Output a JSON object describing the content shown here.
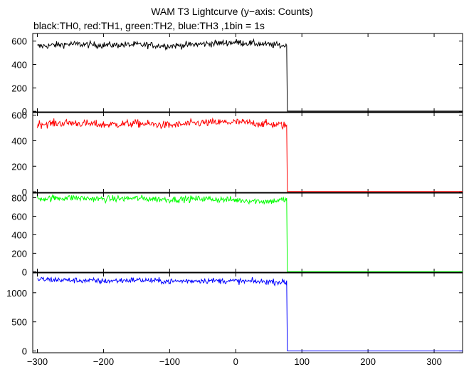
{
  "title": "WAM T3 Lightcurve (y−axis: Counts)",
  "subtitle": "black:TH0, red:TH1, green:TH2, blue:TH3 ,1bin = 1s",
  "chart_data": {
    "type": "line",
    "x_range": [
      -307,
      343
    ],
    "x_ticks": [
      -300,
      -200,
      -100,
      0,
      100,
      200,
      300
    ],
    "x_tick_labels": [
      "−300",
      "−200",
      "−100",
      "0",
      "100",
      "200",
      "300"
    ],
    "series": [
      {
        "name": "TH0",
        "color": "#000000",
        "ylim": [
          -5,
          665
        ],
        "y_ticks": [
          0,
          200,
          400,
          600
        ],
        "y_tick_labels": [
          "0",
          "200",
          "400",
          "600"
        ],
        "level": 570,
        "noise": 20,
        "drop_x": 77,
        "after_level": 2,
        "points": [
          [
            -300,
            555
          ],
          [
            -250,
            575
          ],
          [
            -200,
            565
          ],
          [
            -150,
            570
          ],
          [
            -100,
            558
          ],
          [
            -50,
            575
          ],
          [
            0,
            590
          ],
          [
            50,
            570
          ],
          [
            75,
            560
          ],
          [
            78,
            2
          ],
          [
            343,
            2
          ]
        ]
      },
      {
        "name": "TH1",
        "color": "#ff0000",
        "ylim": [
          -5,
          620
        ],
        "y_ticks": [
          0,
          200,
          400,
          600
        ],
        "y_tick_labels": [
          "0",
          "200",
          "400",
          "600"
        ],
        "level": 530,
        "noise": 22,
        "drop_x": 77,
        "after_level": 2,
        "points": [
          [
            -300,
            530
          ],
          [
            -250,
            540
          ],
          [
            -200,
            525
          ],
          [
            -150,
            535
          ],
          [
            -100,
            520
          ],
          [
            -50,
            540
          ],
          [
            0,
            545
          ],
          [
            50,
            530
          ],
          [
            75,
            520
          ],
          [
            78,
            2
          ],
          [
            343,
            2
          ]
        ]
      },
      {
        "name": "TH2",
        "color": "#00ff00",
        "ylim": [
          -5,
          850
        ],
        "y_ticks": [
          0,
          200,
          400,
          600,
          800
        ],
        "y_tick_labels": [
          "0",
          "200",
          "400",
          "600",
          "800"
        ],
        "level": 790,
        "noise": 25,
        "drop_x": 77,
        "after_level": 2,
        "points": [
          [
            -300,
            790
          ],
          [
            -250,
            800
          ],
          [
            -200,
            785
          ],
          [
            -150,
            795
          ],
          [
            -100,
            780
          ],
          [
            -50,
            790
          ],
          [
            0,
            775
          ],
          [
            50,
            760
          ],
          [
            75,
            780
          ],
          [
            78,
            2
          ],
          [
            343,
            2
          ]
        ]
      },
      {
        "name": "TH3",
        "color": "#0000ff",
        "ylim": [
          -30,
          1340
        ],
        "y_ticks": [
          0,
          500,
          1000
        ],
        "y_tick_labels": [
          "0",
          "500",
          "1000"
        ],
        "level": 1210,
        "noise": 35,
        "drop_x": 77,
        "after_level": 2,
        "points": [
          [
            -300,
            1230
          ],
          [
            -250,
            1215
          ],
          [
            -200,
            1200
          ],
          [
            -150,
            1220
          ],
          [
            -100,
            1195
          ],
          [
            -50,
            1210
          ],
          [
            0,
            1200
          ],
          [
            50,
            1190
          ],
          [
            75,
            1180
          ],
          [
            78,
            2
          ],
          [
            343,
            2
          ]
        ]
      }
    ]
  }
}
